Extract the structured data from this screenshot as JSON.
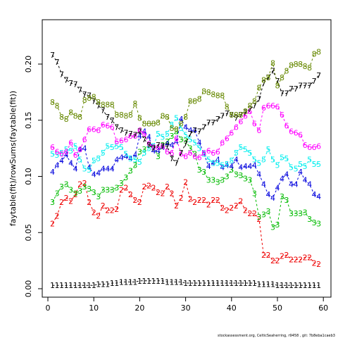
{
  "footer": "stockassessment.org, CelticSeaherring, r9458 , git: 7b8eba1caeb3",
  "chart_data": {
    "type": "line",
    "ylabel": "faytable(fit)/rowSums(faytable(fit))",
    "xlim": [
      0,
      60
    ],
    "ylim": [
      0,
      0.22
    ],
    "xticks": [
      0,
      10,
      20,
      30,
      40,
      50,
      60
    ],
    "yticks": [
      0.0,
      0.05,
      0.1,
      0.15,
      0.2
    ],
    "ytick_labels": [
      "0.00",
      "0.05",
      "0.10",
      "0.15",
      "0.20"
    ],
    "x": [
      1,
      2,
      3,
      4,
      5,
      6,
      7,
      8,
      9,
      10,
      11,
      12,
      13,
      14,
      15,
      16,
      17,
      18,
      19,
      20,
      21,
      22,
      23,
      24,
      25,
      26,
      27,
      28,
      29,
      30,
      31,
      32,
      33,
      34,
      35,
      36,
      37,
      38,
      39,
      40,
      41,
      42,
      43,
      44,
      45,
      46,
      47,
      48,
      49,
      50,
      51,
      52,
      53,
      54,
      55,
      56,
      57,
      58,
      59
    ],
    "series": [
      {
        "label": "1",
        "color": "#000000",
        "values": [
          0.003,
          0.003,
          0.003,
          0.003,
          0.003,
          0.003,
          0.003,
          0.003,
          0.003,
          0.003,
          0.004,
          0.004,
          0.004,
          0.005,
          0.005,
          0.006,
          0.006,
          0.006,
          0.006,
          0.007,
          0.007,
          0.007,
          0.007,
          0.007,
          0.007,
          0.006,
          0.006,
          0.006,
          0.006,
          0.005,
          0.005,
          0.005,
          0.005,
          0.005,
          0.005,
          0.005,
          0.005,
          0.005,
          0.005,
          0.005,
          0.005,
          0.005,
          0.005,
          0.005,
          0.005,
          0.004,
          0.004,
          0.004,
          0.004,
          0.003,
          0.003,
          0.003,
          0.003,
          0.003,
          0.003,
          0.003,
          0.003,
          0.003,
          0.003
        ]
      },
      {
        "label": "2",
        "color": "#ee0000",
        "values": [
          0.058,
          0.065,
          0.077,
          0.081,
          0.078,
          0.084,
          0.093,
          0.094,
          0.077,
          0.068,
          0.065,
          0.074,
          0.07,
          0.07,
          0.071,
          0.088,
          0.09,
          0.084,
          0.079,
          0.077,
          0.091,
          0.092,
          0.09,
          0.086,
          0.085,
          0.091,
          0.085,
          0.074,
          0.081,
          0.095,
          0.08,
          0.077,
          0.079,
          0.079,
          0.075,
          0.079,
          0.079,
          0.072,
          0.07,
          0.072,
          0.074,
          0.078,
          0.07,
          0.067,
          0.067,
          0.062,
          0.03,
          0.03,
          0.025,
          0.025,
          0.029,
          0.03,
          0.026,
          0.026,
          0.026,
          0.028,
          0.028,
          0.023,
          0.022
        ]
      },
      {
        "label": "3",
        "color": "#00bb00",
        "values": [
          0.077,
          0.085,
          0.091,
          0.093,
          0.088,
          0.085,
          0.087,
          0.091,
          0.089,
          0.086,
          0.082,
          0.088,
          0.088,
          0.088,
          0.09,
          0.094,
          0.099,
          0.105,
          0.11,
          0.122,
          0.124,
          0.128,
          0.126,
          0.118,
          0.128,
          0.131,
          0.136,
          0.14,
          0.133,
          0.132,
          0.125,
          0.12,
          0.106,
          0.104,
          0.097,
          0.097,
          0.095,
          0.097,
          0.1,
          0.106,
          0.102,
          0.101,
          0.098,
          0.097,
          0.085,
          0.064,
          0.066,
          0.069,
          0.055,
          0.057,
          0.082,
          0.079,
          0.067,
          0.067,
          0.067,
          0.068,
          0.062,
          0.059,
          0.058
        ]
      },
      {
        "label": "4",
        "color": "#0000dd",
        "values": [
          0.104,
          0.11,
          0.114,
          0.119,
          0.112,
          0.107,
          0.124,
          0.125,
          0.108,
          0.102,
          0.103,
          0.107,
          0.107,
          0.107,
          0.115,
          0.117,
          0.118,
          0.116,
          0.119,
          0.136,
          0.14,
          0.135,
          0.123,
          0.123,
          0.126,
          0.129,
          0.128,
          0.131,
          0.151,
          0.144,
          0.141,
          0.141,
          0.13,
          0.12,
          0.109,
          0.112,
          0.115,
          0.108,
          0.11,
          0.109,
          0.115,
          0.108,
          0.109,
          0.109,
          0.11,
          0.102,
          0.093,
          0.084,
          0.081,
          0.09,
          0.098,
          0.102,
          0.093,
          0.093,
          0.104,
          0.097,
          0.093,
          0.084,
          0.082
        ]
      },
      {
        "label": "5",
        "color": "#00eeee",
        "values": [
          0.12,
          0.119,
          0.121,
          0.124,
          0.123,
          0.127,
          0.115,
          0.107,
          0.106,
          0.114,
          0.116,
          0.121,
          0.127,
          0.126,
          0.127,
          0.126,
          0.12,
          0.116,
          0.115,
          0.113,
          0.121,
          0.125,
          0.127,
          0.138,
          0.135,
          0.138,
          0.146,
          0.152,
          0.143,
          0.137,
          0.133,
          0.13,
          0.125,
          0.12,
          0.115,
          0.112,
          0.112,
          0.11,
          0.111,
          0.114,
          0.121,
          0.126,
          0.124,
          0.121,
          0.115,
          0.112,
          0.115,
          0.124,
          0.115,
          0.11,
          0.117,
          0.116,
          0.108,
          0.107,
          0.111,
          0.109,
          0.115,
          0.111,
          0.111
        ]
      },
      {
        "label": "6",
        "color": "#ff00ff",
        "values": [
          0.126,
          0.122,
          0.12,
          0.122,
          0.13,
          0.119,
          0.124,
          0.133,
          0.142,
          0.142,
          0.141,
          0.146,
          0.145,
          0.144,
          0.131,
          0.132,
          0.133,
          0.136,
          0.136,
          0.141,
          0.138,
          0.129,
          0.126,
          0.126,
          0.127,
          0.122,
          0.121,
          0.134,
          0.12,
          0.118,
          0.121,
          0.118,
          0.117,
          0.121,
          0.123,
          0.121,
          0.122,
          0.13,
          0.134,
          0.139,
          0.144,
          0.149,
          0.154,
          0.158,
          0.147,
          0.141,
          0.161,
          0.163,
          0.163,
          0.162,
          0.155,
          0.145,
          0.14,
          0.139,
          0.137,
          0.128,
          0.126,
          0.126,
          0.127
        ]
      },
      {
        "label": "7",
        "color": "#000000",
        "values": [
          0.208,
          0.202,
          0.191,
          0.186,
          0.183,
          0.182,
          0.177,
          0.173,
          0.172,
          0.167,
          0.163,
          0.159,
          0.153,
          0.15,
          0.144,
          0.141,
          0.139,
          0.138,
          0.137,
          0.14,
          0.133,
          0.128,
          0.125,
          0.128,
          0.127,
          0.127,
          0.116,
          0.112,
          0.121,
          0.129,
          0.138,
          0.141,
          0.14,
          0.144,
          0.148,
          0.148,
          0.151,
          0.154,
          0.156,
          0.155,
          0.152,
          0.155,
          0.157,
          0.16,
          0.163,
          0.169,
          0.183,
          0.188,
          0.194,
          0.185,
          0.174,
          0.174,
          0.178,
          0.178,
          0.181,
          0.181,
          0.181,
          0.185,
          0.19
        ]
      },
      {
        "label": "8",
        "color": "#668800",
        "values": [
          0.166,
          0.163,
          0.153,
          0.151,
          0.157,
          0.154,
          0.153,
          0.168,
          0.17,
          0.171,
          0.166,
          0.164,
          0.164,
          0.164,
          0.155,
          0.155,
          0.154,
          0.155,
          0.165,
          0.152,
          0.147,
          0.147,
          0.147,
          0.148,
          0.154,
          0.153,
          0.143,
          0.142,
          0.147,
          0.153,
          0.167,
          0.167,
          0.169,
          0.176,
          0.175,
          0.173,
          0.172,
          0.172,
          0.162,
          0.155,
          0.155,
          0.155,
          0.158,
          0.163,
          0.167,
          0.179,
          0.186,
          0.188,
          0.201,
          0.181,
          0.188,
          0.194,
          0.199,
          0.2,
          0.2,
          0.198,
          0.197,
          0.209,
          0.211
        ]
      }
    ]
  }
}
